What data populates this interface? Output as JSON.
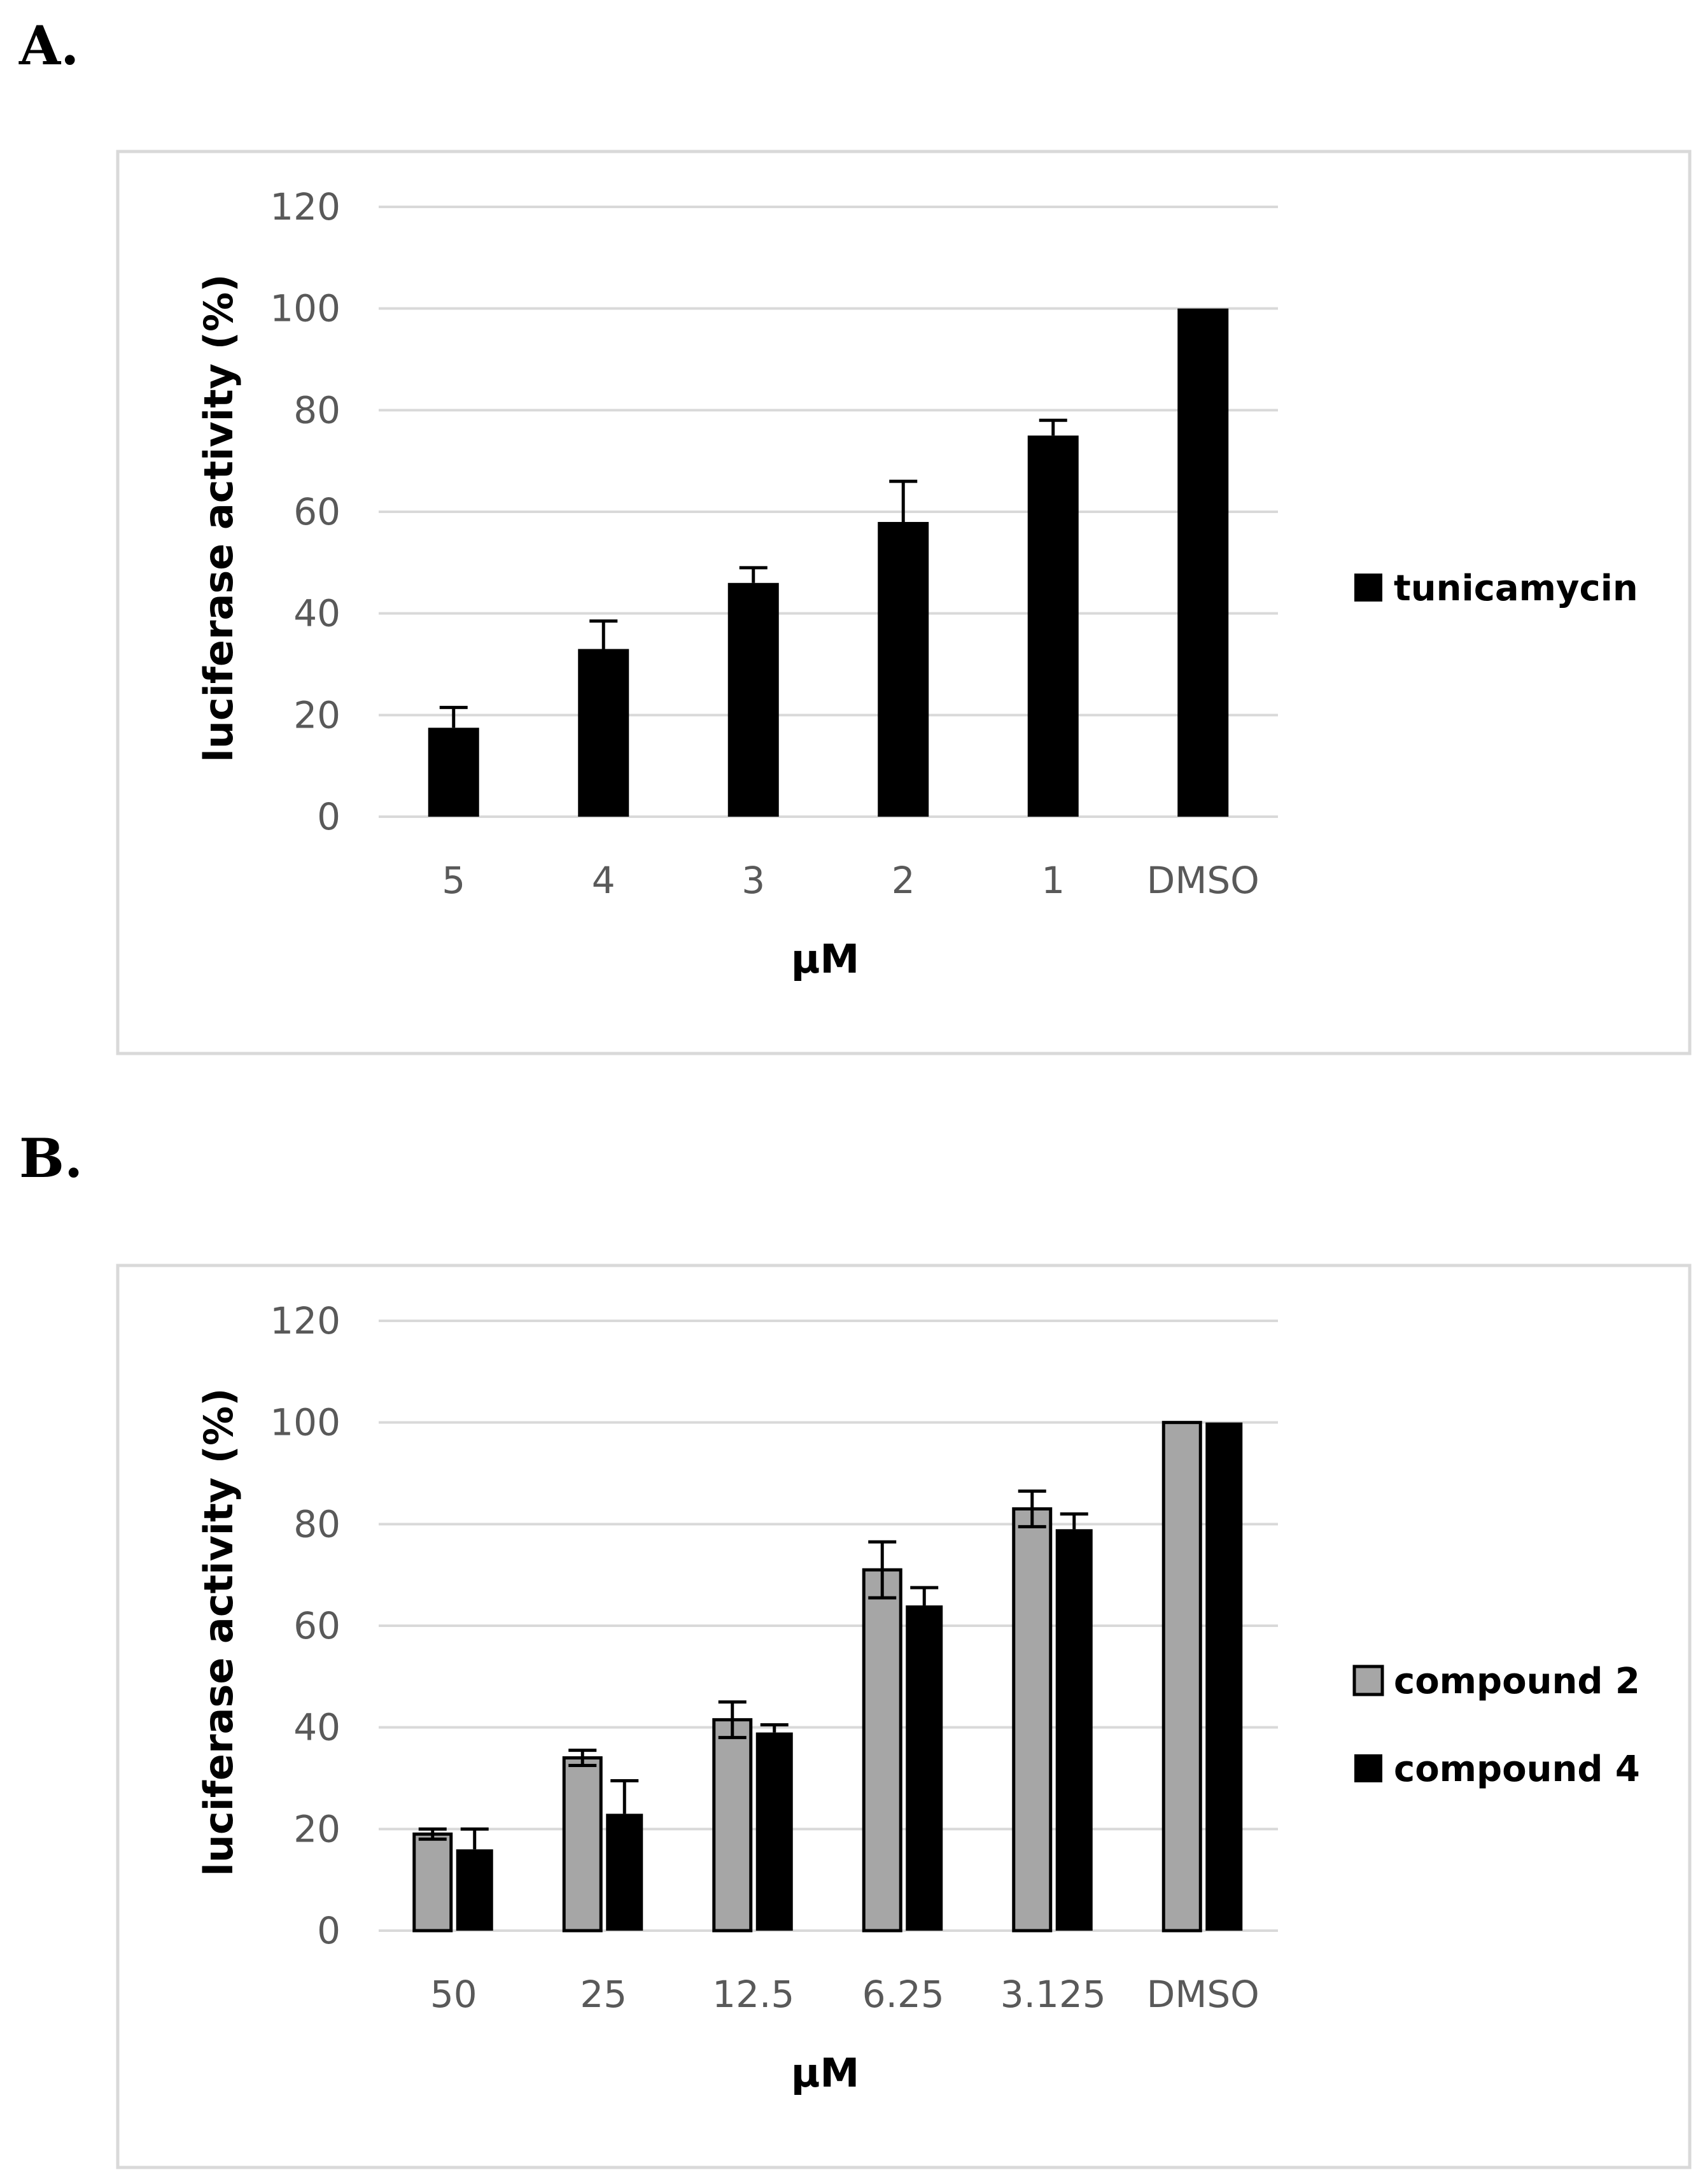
{
  "panels": {
    "a": {
      "label": "A."
    },
    "b": {
      "label": "B."
    }
  },
  "chart_data": [
    {
      "type": "bar",
      "panel": "A.",
      "title": "",
      "xlabel": "μM",
      "ylabel": "luciferase activity (%)",
      "ylim": [
        0,
        120
      ],
      "yticks": [
        0,
        20,
        40,
        60,
        80,
        100,
        120
      ],
      "grid": true,
      "legend_position": "right",
      "categories": [
        "5",
        "4",
        "3",
        "2",
        "1",
        "DMSO"
      ],
      "series": [
        {
          "name": "tunicamycin",
          "color": "#000000",
          "values": [
            17.5,
            33,
            46,
            58,
            75,
            100
          ],
          "errors": [
            4,
            5.5,
            3,
            8,
            3,
            null
          ]
        }
      ]
    },
    {
      "type": "bar",
      "panel": "B.",
      "title": "",
      "xlabel": "μM",
      "ylabel": "luciferase activity (%)",
      "ylim": [
        0,
        120
      ],
      "yticks": [
        0,
        20,
        40,
        60,
        80,
        100,
        120
      ],
      "grid": true,
      "legend_position": "right",
      "categories": [
        "50",
        "25",
        "12.5",
        "6.25",
        "3.125",
        "DMSO"
      ],
      "series": [
        {
          "name": "compound 2",
          "color": "#a6a6a6",
          "values": [
            19,
            34,
            41.5,
            71,
            83,
            100
          ],
          "errors": [
            1,
            1.5,
            3.5,
            5.5,
            3.5,
            null
          ]
        },
        {
          "name": "compound 4",
          "color": "#000000",
          "values": [
            16,
            23,
            39,
            64,
            79,
            100
          ],
          "errors": [
            4,
            6.5,
            1.5,
            3.5,
            3,
            null
          ]
        }
      ]
    }
  ]
}
